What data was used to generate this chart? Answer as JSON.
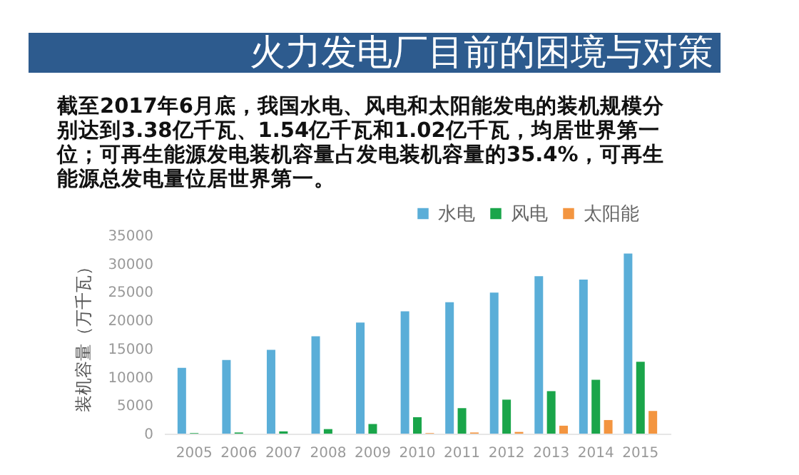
{
  "chart_data": {
    "type": "bar",
    "title": "火力发电厂目前的困境与对策",
    "subtitle": "截至2017年6月底，我国水电、风电和太阳能发电的装机规模分别达到3.38亿千瓦、1.54亿千瓦和1.02亿千瓦，均居世界第一位；可再生能源发电装机容量占发电装机容量的35.4%，可再生能源总发电量位居世界第一。",
    "ylabel": "装机容量（万千瓦）",
    "categories": [
      "2005",
      "2006",
      "2007",
      "2008",
      "2009",
      "2010",
      "2011",
      "2012",
      "2013",
      "2014",
      "2015"
    ],
    "series": [
      {
        "name": "水电",
        "color": "#5aaed8",
        "values": [
          11600,
          13000,
          14800,
          17200,
          19600,
          21600,
          23200,
          24900,
          27800,
          27200,
          31800
        ]
      },
      {
        "name": "风电",
        "color": "#1aa54a",
        "values": [
          100,
          200,
          400,
          800,
          1700,
          2900,
          4500,
          6000,
          7500,
          9500,
          12700
        ]
      },
      {
        "name": "太阳能",
        "color": "#f39540",
        "values": [
          0,
          0,
          0,
          0,
          0,
          100,
          200,
          300,
          1400,
          2400,
          4000
        ]
      }
    ],
    "ylim": [
      0,
      35000
    ],
    "yticks": [
      0,
      5000,
      10000,
      15000,
      20000,
      25000,
      30000,
      35000
    ],
    "grid": false,
    "legend": "top right"
  }
}
